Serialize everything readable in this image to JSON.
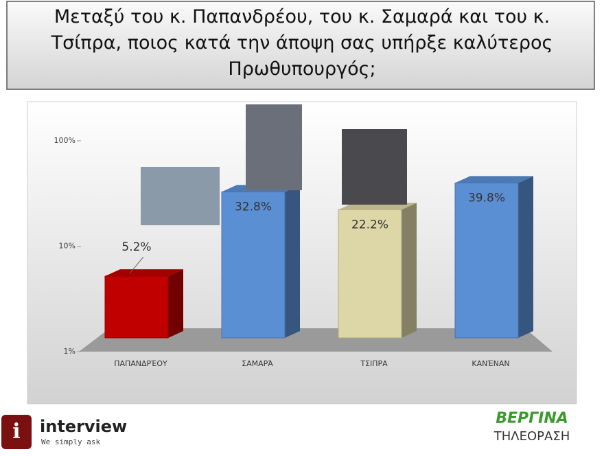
{
  "chart_data": {
    "type": "bar",
    "title": "Μεταξύ του κ. Παπανδρέου, του κ. Σαμαρά και του κ. Τσίπρα, ποιος κατά την άποψη σας υπήρξε καλύτερος Πρωθυπουργός;",
    "categories": [
      "ΠΑΠΑΝΔΡΈΟΥ",
      "ΣΑΜΑΡΆ",
      "ΤΣΙΠΡΑ",
      "ΚΑΝΈΝΑΝ"
    ],
    "values": [
      5.2,
      32.8,
      22.2,
      39.8
    ],
    "value_labels": [
      "5.2%",
      "32.8%",
      "22.2%",
      "39.8%"
    ],
    "colors": [
      "#c00000",
      "#5b8fd4",
      "#ddd6a6",
      "#5b8fd4"
    ],
    "log_scale": true,
    "ylim": [
      1,
      100
    ],
    "yticks": [
      {
        "value": 1,
        "label": "1%"
      },
      {
        "value": 10,
        "label": "10%"
      },
      {
        "value": 100,
        "label": "100%"
      }
    ],
    "grid": false
  },
  "footer": {
    "left_logo": "interview",
    "left_tagline": "We simply ask",
    "right_logo": "ΒΕΡΓΙΝΑ",
    "right_tagline": "ΤΗΛΕΟΡΑΣΗ"
  }
}
